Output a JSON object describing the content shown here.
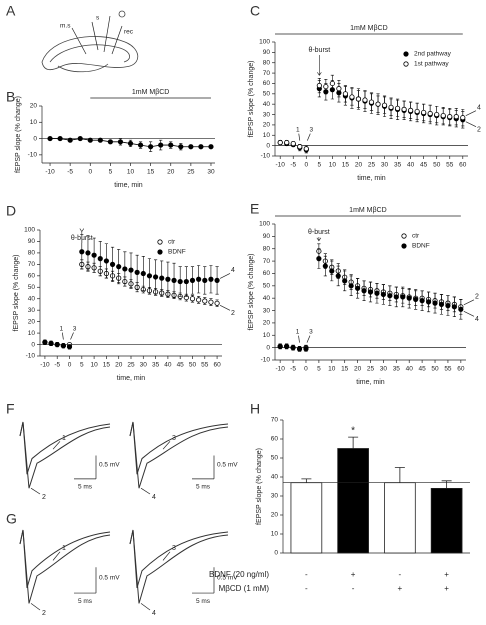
{
  "schematic": {
    "panel": "A",
    "labels": [
      "m.s",
      "s",
      "rec"
    ]
  },
  "traces": [
    {
      "panel": "F",
      "recordings": [
        {
          "labels": [
            "1",
            "2"
          ],
          "voltage_scale": "0.5 mV",
          "time_scale": "5 ms"
        },
        {
          "labels": [
            "3",
            "4"
          ],
          "voltage_scale": "0.5 mV",
          "time_scale": "5 ms"
        }
      ]
    },
    {
      "panel": "G",
      "recordings": [
        {
          "labels": [
            "1",
            "2"
          ],
          "voltage_scale": "0.5 mV",
          "time_scale": "5 ms"
        },
        {
          "labels": [
            "3",
            "4"
          ],
          "voltage_scale": "0.5 mV",
          "time_scale": "5 ms"
        }
      ]
    }
  ],
  "chart_data": [
    {
      "type": "line",
      "panel": "B",
      "xlabel": "time, min",
      "ylabel": "fEPSP slope (% change)",
      "treatment": {
        "label": "1mM MβCD",
        "span": [
          0,
          30
        ]
      },
      "x": [
        -10,
        -7.5,
        -5,
        -2.5,
        0,
        2.5,
        5,
        7.5,
        10,
        12.5,
        15,
        17.5,
        20,
        22.5,
        25,
        27.5,
        30
      ],
      "values": [
        0,
        0,
        -1,
        0,
        -1,
        -1,
        -2,
        -2,
        -3,
        -4,
        -5,
        -4,
        -4,
        -5,
        -5,
        -5,
        -5
      ],
      "errors": [
        1,
        1,
        1,
        1,
        1,
        1,
        1,
        2,
        2,
        2,
        3,
        3,
        2,
        2,
        1,
        1,
        1
      ],
      "color": "#000",
      "zero_line": true,
      "xlim": [
        -12,
        31
      ],
      "ylim": [
        -15,
        20
      ],
      "xticks": [
        -10,
        -5,
        0,
        5,
        10,
        15,
        20,
        25,
        30
      ],
      "yticks": [
        -10,
        0,
        10,
        20
      ]
    },
    {
      "type": "scatter",
      "panel": "C",
      "xlabel": "time, min",
      "ylabel": "fEPSP slope (% change)",
      "treatment": {
        "label": "1mM MβCD",
        "span": [
          -12,
          60
        ]
      },
      "annotations": [
        "θ-burst",
        "1",
        "3",
        "4",
        "2"
      ],
      "x": [
        -10,
        -7.5,
        -5,
        -2.5,
        0,
        5,
        7.5,
        10,
        12.5,
        15,
        17.5,
        20,
        22.5,
        25,
        27.5,
        30,
        32.5,
        35,
        37.5,
        40,
        42.5,
        45,
        47.5,
        50,
        52.5,
        55,
        57.5,
        60
      ],
      "series": [
        {
          "name": "2nd pathway",
          "color": "#000",
          "marker": "filled",
          "values": [
            3,
            2,
            1,
            -2,
            -4,
            55,
            52,
            54,
            51,
            48,
            46,
            45,
            43,
            41,
            40,
            38,
            36,
            35,
            34,
            33,
            32,
            31,
            30,
            29,
            28,
            27,
            26,
            25
          ],
          "errors": [
            2,
            2,
            2,
            3,
            3,
            8,
            8,
            9,
            9,
            9,
            10,
            10,
            10,
            10,
            10,
            10,
            10,
            10,
            9,
            9,
            9,
            9,
            9,
            9,
            8,
            8,
            8,
            8
          ]
        },
        {
          "name": "1st pathway",
          "color": "#000",
          "marker": "open",
          "values": [
            3,
            3,
            2,
            -1,
            -3,
            58,
            57,
            60,
            55,
            50,
            47,
            45,
            44,
            42,
            40,
            39,
            37,
            36,
            35,
            34,
            33,
            32,
            31,
            30,
            29,
            28,
            28,
            27
          ],
          "errors": [
            2,
            2,
            2,
            2,
            3,
            7,
            7,
            8,
            8,
            8,
            8,
            8,
            8,
            8,
            8,
            8,
            8,
            8,
            8,
            8,
            8,
            8,
            8,
            8,
            8,
            8,
            8,
            8
          ]
        }
      ],
      "zero_line": true,
      "legend": "upper-right",
      "xlim": [
        -12,
        62
      ],
      "ylim": [
        -10,
        100
      ],
      "xticks": [
        -10,
        -5,
        0,
        5,
        10,
        15,
        20,
        25,
        30,
        35,
        40,
        45,
        50,
        55,
        60
      ],
      "yticks": [
        -10,
        0,
        10,
        20,
        30,
        40,
        50,
        60,
        70,
        80,
        90,
        100
      ]
    },
    {
      "type": "scatter",
      "panel": "D",
      "xlabel": "time, min",
      "ylabel": "fEPSP slope (% change)",
      "annotations": [
        "θ-burst",
        "1",
        "3",
        "4",
        "2"
      ],
      "x": [
        -10,
        -7.5,
        -5,
        -2.5,
        0,
        5,
        7.5,
        10,
        12.5,
        15,
        17.5,
        20,
        22.5,
        25,
        27.5,
        30,
        32.5,
        35,
        37.5,
        40,
        42.5,
        45,
        47.5,
        50,
        52.5,
        55,
        57.5,
        60
      ],
      "series": [
        {
          "name": "ctr",
          "color": "#000",
          "marker": "open",
          "values": [
            2,
            1,
            0,
            -1,
            0,
            70,
            68,
            67,
            64,
            62,
            60,
            58,
            55,
            53,
            50,
            48,
            47,
            46,
            45,
            44,
            43,
            42,
            41,
            40,
            39,
            38,
            37,
            36
          ],
          "errors": [
            1,
            1,
            1,
            1,
            1,
            4,
            4,
            4,
            4,
            4,
            4,
            4,
            4,
            4,
            4,
            3,
            3,
            3,
            3,
            3,
            3,
            3,
            3,
            3,
            3,
            3,
            3,
            3
          ]
        },
        {
          "name": "BDNF",
          "color": "#000",
          "marker": "filled",
          "values": [
            2,
            1,
            0,
            -1,
            -2,
            81,
            80,
            78,
            75,
            73,
            70,
            68,
            66,
            65,
            63,
            62,
            60,
            59,
            58,
            57,
            56,
            55,
            55,
            56,
            57,
            56,
            57,
            56
          ],
          "errors": [
            2,
            2,
            2,
            2,
            2,
            15,
            15,
            15,
            15,
            15,
            15,
            15,
            15,
            15,
            15,
            15,
            15,
            15,
            15,
            15,
            15,
            13,
            13,
            12,
            12,
            12,
            12,
            12
          ]
        }
      ],
      "zero_line": true,
      "legend": "upper-right",
      "xlim": [
        -12,
        62
      ],
      "ylim": [
        -10,
        100
      ],
      "xticks": [
        -10,
        -5,
        0,
        5,
        10,
        15,
        20,
        25,
        30,
        35,
        40,
        45,
        50,
        55,
        60
      ],
      "yticks": [
        -10,
        0,
        10,
        20,
        30,
        40,
        50,
        60,
        70,
        80,
        90,
        100
      ]
    },
    {
      "type": "scatter",
      "panel": "E",
      "xlabel": "time, min",
      "ylabel": "fEPSP slope (% change)",
      "treatment": {
        "label": "1mM MβCD",
        "span": [
          -12,
          60
        ]
      },
      "annotations": [
        "θ-burst",
        "1",
        "3",
        "2",
        "4"
      ],
      "x": [
        -10,
        -7.5,
        -5,
        -2.5,
        0,
        5,
        7.5,
        10,
        12.5,
        15,
        17.5,
        20,
        22.5,
        25,
        27.5,
        30,
        32.5,
        35,
        37.5,
        40,
        42.5,
        45,
        47.5,
        50,
        52.5,
        55,
        57.5,
        60
      ],
      "series": [
        {
          "name": "ctr",
          "color": "#000",
          "marker": "open",
          "values": [
            1,
            1,
            0,
            -1,
            0,
            78,
            70,
            65,
            62,
            57,
            53,
            50,
            48,
            47,
            46,
            45,
            44,
            43,
            42,
            41,
            40,
            40,
            39,
            38,
            37,
            36,
            35,
            33
          ],
          "errors": [
            2,
            2,
            2,
            2,
            2,
            6,
            6,
            6,
            6,
            6,
            6,
            6,
            6,
            6,
            6,
            6,
            6,
            6,
            6,
            6,
            6,
            6,
            6,
            6,
            6,
            6,
            6,
            6
          ]
        },
        {
          "name": "BDNF",
          "color": "#000",
          "marker": "filled",
          "values": [
            1,
            1,
            0,
            -1,
            -1,
            72,
            66,
            62,
            58,
            54,
            50,
            48,
            46,
            45,
            44,
            43,
            42,
            41,
            41,
            40,
            39,
            38,
            37,
            36,
            35,
            34,
            33,
            31
          ],
          "errors": [
            2,
            2,
            2,
            2,
            2,
            8,
            8,
            8,
            8,
            8,
            8,
            8,
            8,
            8,
            8,
            8,
            8,
            8,
            8,
            8,
            8,
            8,
            8,
            8,
            8,
            8,
            8,
            8
          ]
        }
      ],
      "zero_line": true,
      "legend": "upper-right",
      "xlim": [
        -12,
        62
      ],
      "ylim": [
        -10,
        100
      ],
      "xticks": [
        -10,
        -5,
        0,
        5,
        10,
        15,
        20,
        25,
        30,
        35,
        40,
        45,
        50,
        55,
        60
      ],
      "yticks": [
        -10,
        0,
        10,
        20,
        30,
        40,
        50,
        60,
        70,
        80,
        90,
        100
      ]
    },
    {
      "type": "bar",
      "panel": "H",
      "ylabel": "fEPSP slope (% change)",
      "categories": [
        null,
        null,
        null,
        null
      ],
      "values": [
        37,
        55,
        37,
        34
      ],
      "errors": [
        2,
        6,
        8,
        4
      ],
      "colors": [
        "#ffffff",
        "#000000",
        "#ffffff",
        "#000000"
      ],
      "significance": [
        null,
        "*",
        null,
        null
      ],
      "reference_line": 37,
      "conditions": [
        {
          "name": "BDNF (20 ng/ml)",
          "values": [
            "-",
            "+",
            "-",
            "+"
          ]
        },
        {
          "name": "MβCD (1 mM)",
          "values": [
            "-",
            "-",
            "+",
            "+"
          ]
        }
      ],
      "ylim": [
        0,
        70
      ],
      "yticks": [
        0,
        10,
        20,
        30,
        40,
        50,
        60,
        70
      ]
    }
  ]
}
